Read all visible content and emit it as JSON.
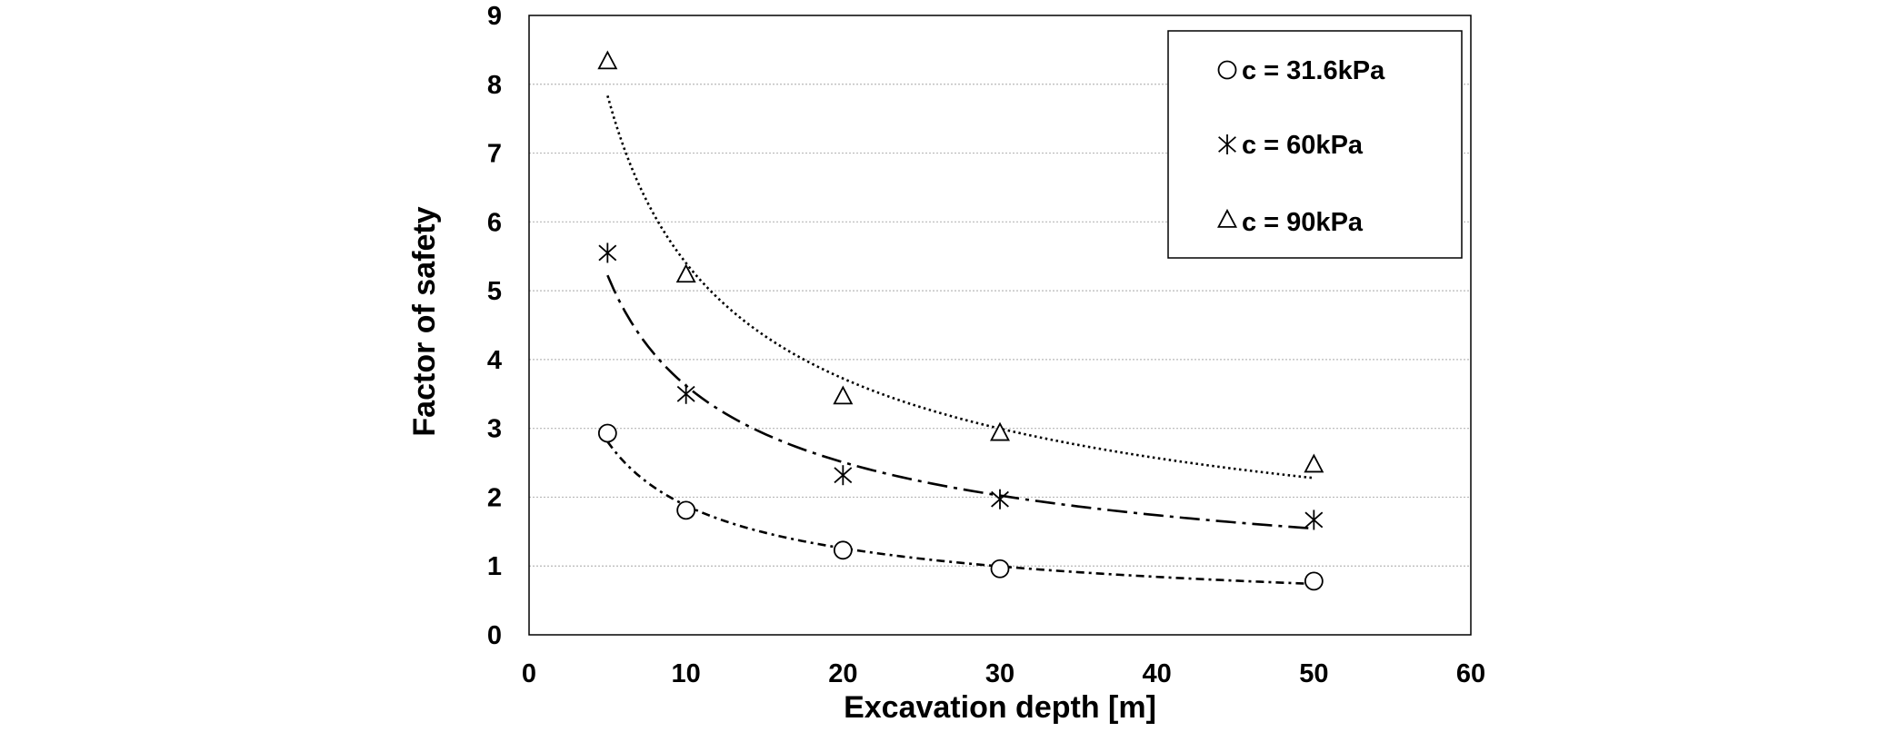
{
  "chart_data": {
    "type": "scatter",
    "title": "",
    "xlabel": "Excavation depth [m]",
    "ylabel": "Factor of safety",
    "xlim": [
      0,
      60
    ],
    "ylim": [
      0,
      9
    ],
    "xticks": [
      "0",
      "10",
      "20",
      "30",
      "40",
      "50",
      "60"
    ],
    "yticks": [
      "0",
      "1",
      "2",
      "3",
      "4",
      "5",
      "6",
      "7",
      "8",
      "9"
    ],
    "grid": "horizontal gridlines",
    "legend_position": "top-right",
    "series": [
      {
        "name": "c = 31.6kPa",
        "marker": "circle",
        "trendline": "dash-dot-dot",
        "x": [
          5,
          10,
          20,
          30,
          50
        ],
        "y": [
          2.93,
          1.81,
          1.23,
          0.96,
          0.78
        ]
      },
      {
        "name": "c = 60kPa",
        "marker": "asterisk",
        "trendline": "long-dash-dot",
        "x": [
          5,
          10,
          20,
          30,
          50
        ],
        "y": [
          5.55,
          3.5,
          2.32,
          1.97,
          1.67
        ]
      },
      {
        "name": "c = 90kPa",
        "marker": "triangle",
        "trendline": "dotted",
        "x": [
          5,
          10,
          20,
          30,
          50
        ],
        "y": [
          8.32,
          5.22,
          3.45,
          2.92,
          2.46
        ]
      }
    ],
    "trendline_type": "power"
  },
  "colors": {
    "ink": "#000000",
    "grid": "#b8b8b8",
    "background": "#ffffff"
  }
}
